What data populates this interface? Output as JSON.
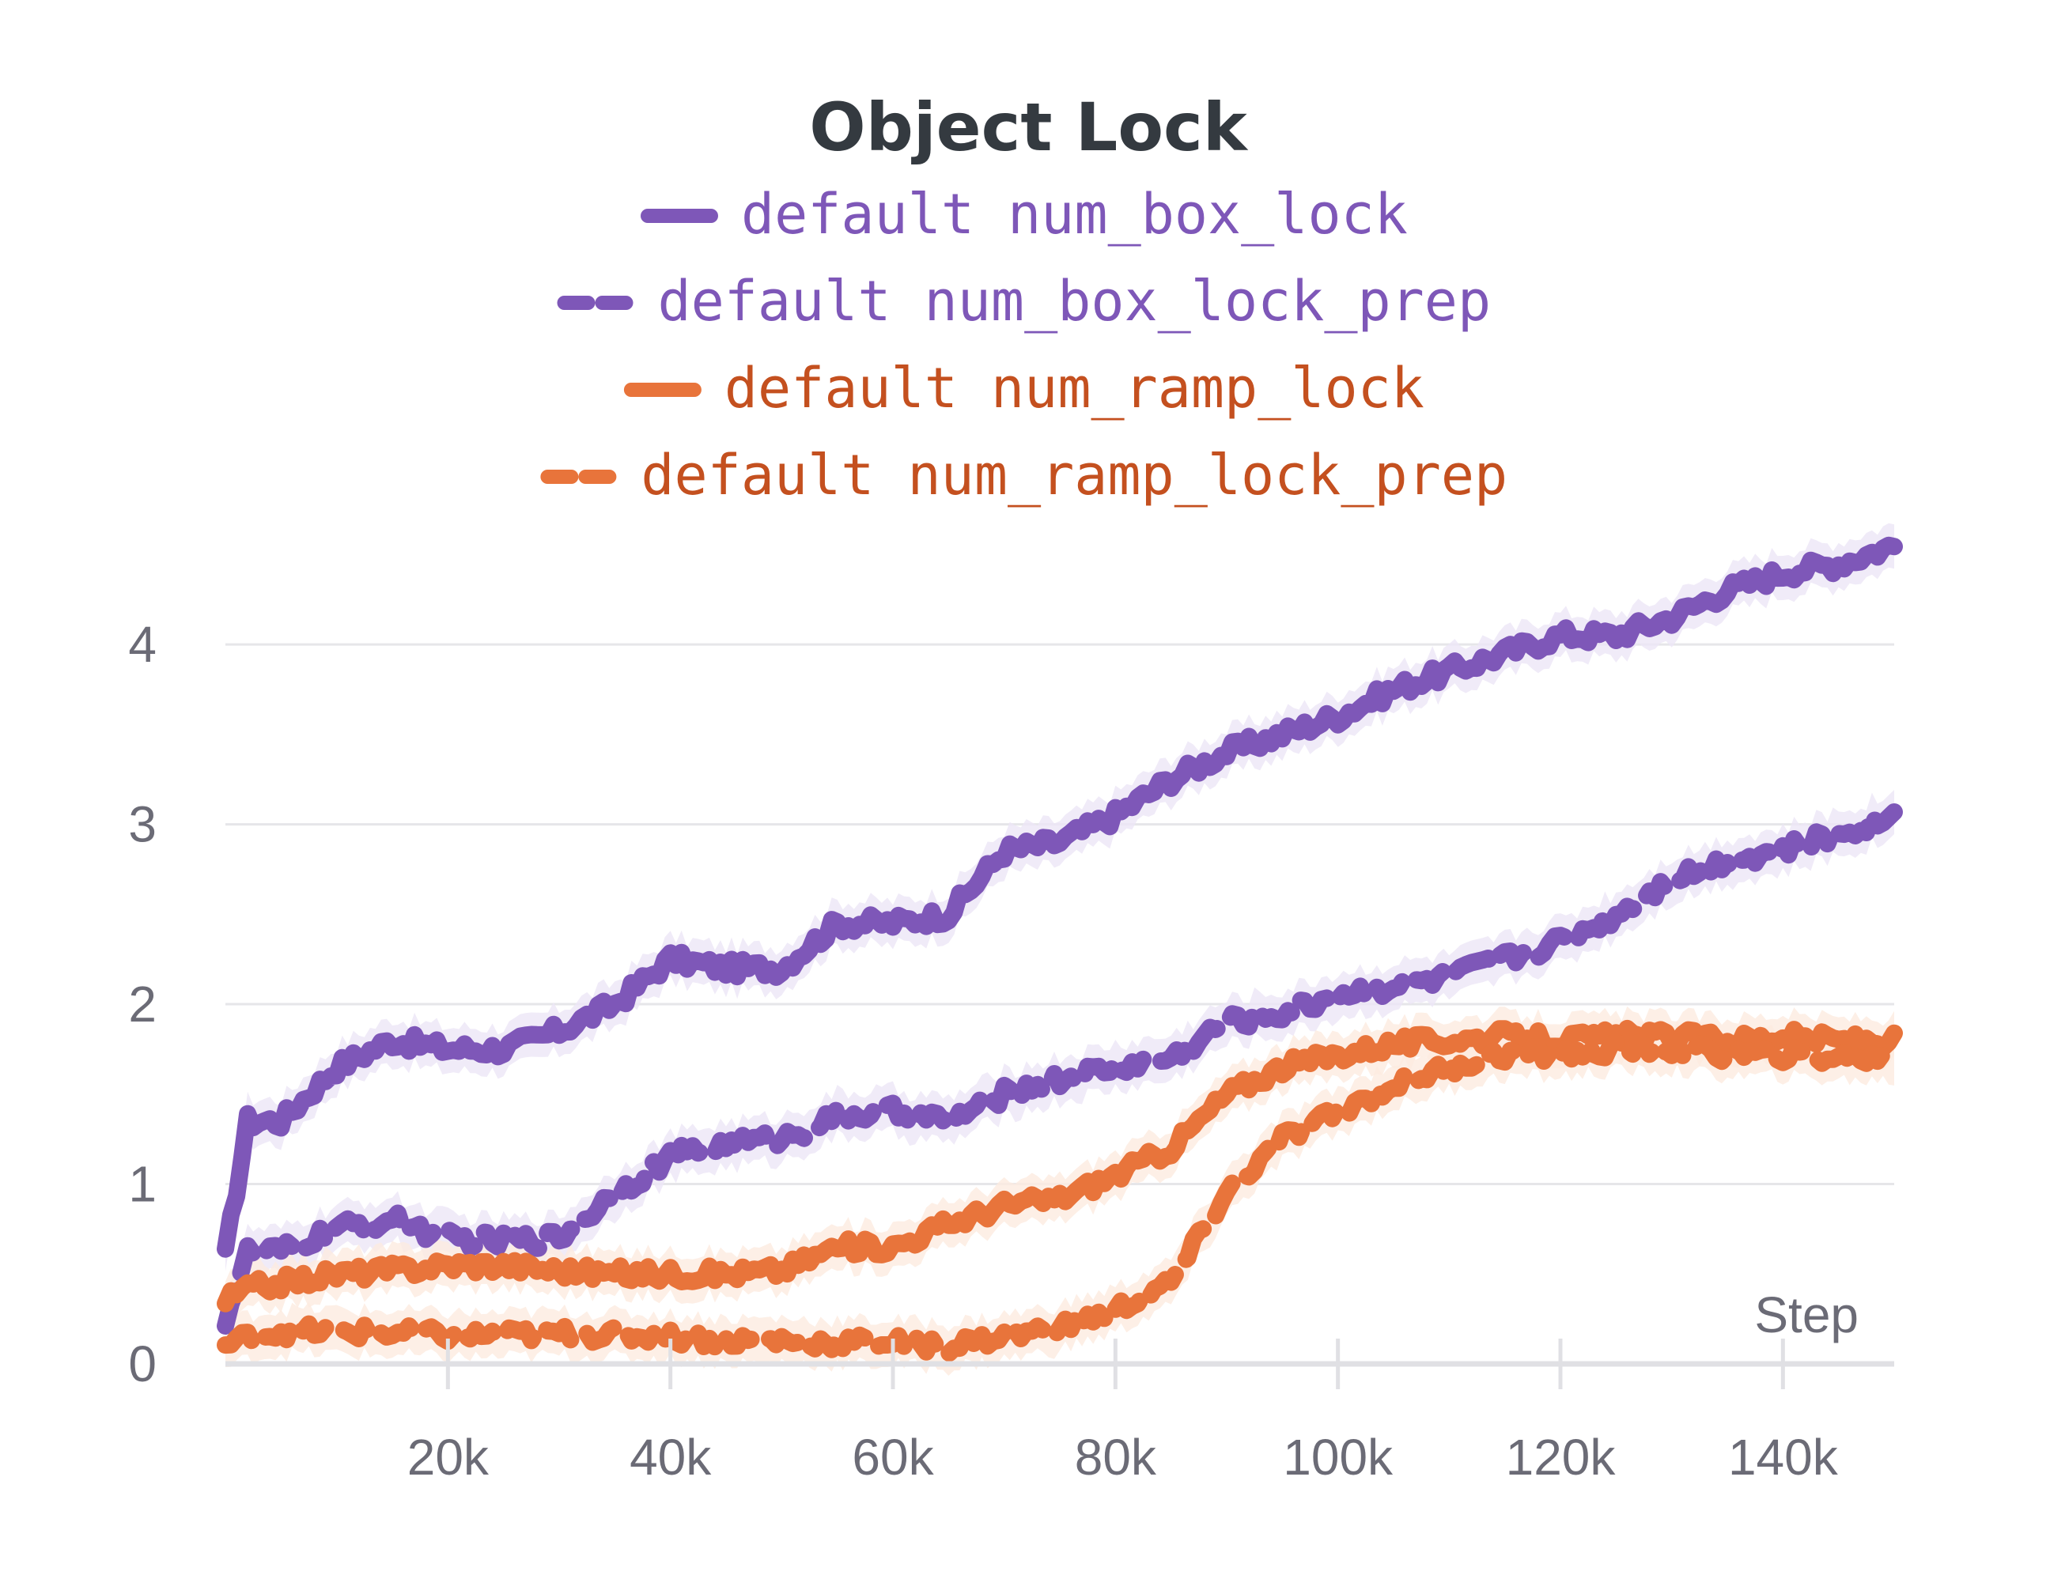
{
  "chart_data": {
    "type": "line",
    "title": "Object Lock",
    "xlabel": "Step",
    "ylabel": "",
    "xlim": [
      0,
      150000
    ],
    "ylim": [
      0,
      4.6
    ],
    "x_ticks": [
      {
        "value": 20000,
        "label": "20k"
      },
      {
        "value": 40000,
        "label": "40k"
      },
      {
        "value": 60000,
        "label": "60k"
      },
      {
        "value": 80000,
        "label": "80k"
      },
      {
        "value": 100000,
        "label": "100k"
      },
      {
        "value": 120000,
        "label": "120k"
      },
      {
        "value": 140000,
        "label": "140k"
      }
    ],
    "y_ticks": [
      {
        "value": 0,
        "label": "0"
      },
      {
        "value": 1,
        "label": "1"
      },
      {
        "value": 2,
        "label": "2"
      },
      {
        "value": 3,
        "label": "3"
      },
      {
        "value": 4,
        "label": "4"
      }
    ],
    "grid": true,
    "legend_position": "top-center",
    "colors": {
      "purple": "#7e57b8",
      "orange": "#e8743b",
      "purple_text": "#7e57b8",
      "orange_text": "#c4501f",
      "purple_band": "#ece6f6",
      "orange_band": "#fcebe0"
    },
    "x": [
      0,
      2000,
      5000,
      10000,
      15000,
      20000,
      25000,
      30000,
      35000,
      40000,
      45000,
      50000,
      55000,
      60000,
      65000,
      70000,
      75000,
      80000,
      85000,
      90000,
      95000,
      100000,
      105000,
      110000,
      115000,
      120000,
      125000,
      130000,
      135000,
      140000,
      145000,
      150000
    ],
    "series": [
      {
        "name": "default num_box_lock",
        "color": "purple",
        "dash": "solid",
        "values": [
          0.6,
          1.35,
          1.35,
          1.65,
          1.8,
          1.75,
          1.75,
          1.85,
          2.0,
          2.25,
          2.2,
          2.2,
          2.45,
          2.45,
          2.5,
          2.85,
          2.9,
          3.05,
          3.25,
          3.4,
          3.5,
          3.6,
          3.75,
          3.85,
          3.95,
          4.05,
          4.05,
          4.15,
          4.3,
          4.4,
          4.45,
          4.55
        ]
      },
      {
        "name": "default num_box_lock_prep",
        "color": "purple",
        "dash": "dashed",
        "values": [
          0.25,
          0.62,
          0.62,
          0.75,
          0.8,
          0.7,
          0.68,
          0.7,
          0.95,
          1.15,
          1.22,
          1.25,
          1.38,
          1.4,
          1.35,
          1.5,
          1.58,
          1.65,
          1.7,
          1.9,
          1.95,
          2.05,
          2.1,
          2.15,
          2.25,
          2.35,
          2.5,
          2.7,
          2.8,
          2.85,
          2.95,
          3.05
        ]
      },
      {
        "name": "default num_ramp_lock",
        "color": "orange",
        "dash": "solid",
        "values": [
          0.35,
          0.42,
          0.45,
          0.5,
          0.52,
          0.55,
          0.55,
          0.52,
          0.5,
          0.5,
          0.5,
          0.52,
          0.65,
          0.65,
          0.78,
          0.88,
          0.92,
          1.05,
          1.2,
          1.5,
          1.65,
          1.72,
          1.78,
          1.8,
          1.82,
          1.8,
          1.82,
          1.82,
          1.8,
          1.82,
          1.8,
          1.8
        ]
      },
      {
        "name": "default num_ramp_lock_prep",
        "color": "orange",
        "dash": "dashed",
        "values": [
          0.1,
          0.15,
          0.18,
          0.18,
          0.17,
          0.16,
          0.16,
          0.17,
          0.16,
          0.15,
          0.13,
          0.13,
          0.12,
          0.12,
          0.1,
          0.15,
          0.2,
          0.3,
          0.45,
          0.95,
          1.25,
          1.4,
          1.55,
          1.65,
          1.72,
          1.72,
          1.75,
          1.75,
          1.72,
          1.72,
          1.7,
          1.7
        ]
      }
    ]
  }
}
